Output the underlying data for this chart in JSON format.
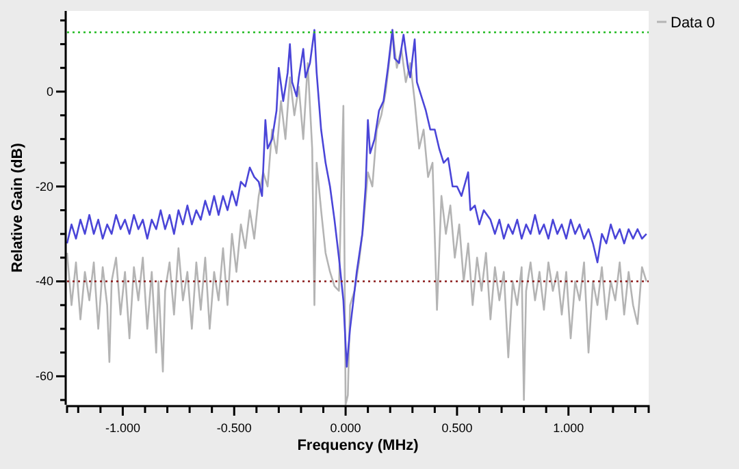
{
  "chart_data": {
    "type": "line",
    "xlabel": "Frequency (MHz)",
    "ylabel": "Relative Gain (dB)",
    "xlim": [
      -1.25,
      1.36
    ],
    "ylim": [
      -66,
      17
    ],
    "xticks": [
      {
        "value": -1.2,
        "label": null
      },
      {
        "value": -1.1,
        "label": null
      },
      {
        "value": -1,
        "label": "-1.000"
      },
      {
        "value": -0.9,
        "label": null
      },
      {
        "value": -0.8,
        "label": null
      },
      {
        "value": -0.7,
        "label": null
      },
      {
        "value": -0.6,
        "label": null
      },
      {
        "value": -0.5,
        "label": "-0.500"
      },
      {
        "value": -0.4,
        "label": null
      },
      {
        "value": -0.3,
        "label": null
      },
      {
        "value": -0.2,
        "label": null
      },
      {
        "value": -0.1,
        "label": null
      },
      {
        "value": 0,
        "label": "0.000"
      },
      {
        "value": 0.1,
        "label": null
      },
      {
        "value": 0.2,
        "label": null
      },
      {
        "value": 0.3,
        "label": null
      },
      {
        "value": 0.4,
        "label": null
      },
      {
        "value": 0.5,
        "label": "0.500"
      },
      {
        "value": 0.6,
        "label": null
      },
      {
        "value": 0.7,
        "label": null
      },
      {
        "value": 0.8,
        "label": null
      },
      {
        "value": 0.9,
        "label": null
      },
      {
        "value": 1,
        "label": "1.000"
      },
      {
        "value": 1.1,
        "label": null
      },
      {
        "value": 1.2,
        "label": null
      },
      {
        "value": 1.3,
        "label": null
      }
    ],
    "yticks": [
      {
        "value": -65,
        "label": null
      },
      -60,
      {
        "value": -55,
        "label": null
      },
      {
        "value": -50,
        "label": null
      },
      {
        "value": -45,
        "label": null
      },
      -40,
      {
        "value": -35,
        "label": null
      },
      {
        "value": -30,
        "label": null
      },
      {
        "value": -25,
        "label": null
      },
      -20,
      {
        "value": -15,
        "label": null
      },
      {
        "value": -10,
        "label": null
      },
      {
        "value": -5,
        "label": null
      },
      0,
      {
        "value": 5,
        "label": null
      },
      {
        "value": 10,
        "label": null
      },
      {
        "value": 15,
        "label": null
      }
    ],
    "grid": false,
    "legend": "top right",
    "marker": "none",
    "line_style": "solid",
    "ref_lines": [
      {
        "axis": "y",
        "value": 12.5,
        "color": "#22bb22",
        "line_style": "dotted"
      },
      {
        "axis": "y",
        "value": -40,
        "color": "#8b1a1a",
        "line_style": "dotted"
      }
    ],
    "series": [
      {
        "name": "Data 0",
        "color": "#b4b4b4",
        "x": [
          -1.25,
          -1.23,
          -1.21,
          -1.19,
          -1.17,
          -1.15,
          -1.13,
          -1.11,
          -1.09,
          -1.07,
          -1.06,
          -1.05,
          -1.03,
          -1.01,
          -0.99,
          -0.97,
          -0.95,
          -0.93,
          -0.91,
          -0.89,
          -0.87,
          -0.85,
          -0.84,
          -0.82,
          -0.81,
          -0.79,
          -0.77,
          -0.75,
          -0.73,
          -0.71,
          -0.69,
          -0.67,
          -0.65,
          -0.63,
          -0.61,
          -0.59,
          -0.57,
          -0.55,
          -0.53,
          -0.51,
          -0.49,
          -0.47,
          -0.45,
          -0.43,
          -0.41,
          -0.39,
          -0.37,
          -0.35,
          -0.33,
          -0.31,
          -0.29,
          -0.27,
          -0.25,
          -0.23,
          -0.21,
          -0.19,
          -0.17,
          -0.15,
          -0.14,
          -0.13,
          -0.11,
          -0.09,
          -0.07,
          -0.05,
          -0.03,
          -0.01,
          0,
          0.01,
          0.02,
          0.04,
          0.06,
          0.08,
          0.1,
          0.12,
          0.14,
          0.16,
          0.18,
          0.2,
          0.21,
          0.23,
          0.25,
          0.27,
          0.29,
          0.31,
          0.33,
          0.35,
          0.37,
          0.39,
          0.41,
          0.43,
          0.45,
          0.47,
          0.49,
          0.51,
          0.53,
          0.55,
          0.57,
          0.59,
          0.61,
          0.63,
          0.65,
          0.67,
          0.69,
          0.71,
          0.73,
          0.75,
          0.77,
          0.79,
          0.8,
          0.81,
          0.83,
          0.85,
          0.87,
          0.89,
          0.91,
          0.93,
          0.95,
          0.97,
          0.99,
          1.01,
          1.03,
          1.05,
          1.07,
          1.09,
          1.11,
          1.13,
          1.15,
          1.17,
          1.19,
          1.21,
          1.23,
          1.25,
          1.27,
          1.29,
          1.31,
          1.33,
          1.35
        ],
        "values": [
          -34,
          -45,
          -36,
          -48,
          -38,
          -44,
          -36,
          -50,
          -37,
          -45,
          -57,
          -40,
          -35,
          -47,
          -38,
          -52,
          -37,
          -44,
          -35,
          -50,
          -38,
          -55,
          -40,
          -59,
          -42,
          -36,
          -47,
          -33,
          -44,
          -38,
          -50,
          -36,
          -46,
          -35,
          -50,
          -38,
          -44,
          -33,
          -45,
          -30,
          -38,
          -28,
          -33,
          -25,
          -31,
          -22,
          -17,
          -20,
          -8,
          -13,
          -2,
          -10,
          3,
          -5,
          1,
          -10,
          6,
          -12,
          -45,
          -15,
          -25,
          -34,
          -38,
          -41,
          -42,
          -3,
          -66,
          -64,
          -45,
          -42,
          -36,
          -28,
          -17,
          -20,
          -8,
          -5,
          0,
          8,
          13,
          5,
          9,
          2,
          6,
          -2,
          -12,
          -8,
          -18,
          -15,
          -46,
          -22,
          -30,
          -24,
          -35,
          -28,
          -40,
          -32,
          -45,
          -35,
          -42,
          -34,
          -48,
          -37,
          -44,
          -38,
          -56,
          -40,
          -45,
          -37,
          -65,
          -42,
          -36,
          -44,
          -38,
          -46,
          -36,
          -42,
          -38,
          -47,
          -38,
          -52,
          -40,
          -44,
          -36,
          -55,
          -40,
          -45,
          -37,
          -48,
          -40,
          -44,
          -36,
          -47,
          -38,
          -45,
          -49,
          -37,
          -40
        ]
      },
      {
        "color": "#4a45d8",
        "x": [
          -1.25,
          -1.23,
          -1.21,
          -1.19,
          -1.17,
          -1.15,
          -1.13,
          -1.11,
          -1.09,
          -1.07,
          -1.05,
          -1.03,
          -1.01,
          -0.99,
          -0.97,
          -0.95,
          -0.93,
          -0.91,
          -0.89,
          -0.87,
          -0.85,
          -0.83,
          -0.81,
          -0.79,
          -0.77,
          -0.75,
          -0.73,
          -0.71,
          -0.69,
          -0.67,
          -0.65,
          -0.63,
          -0.61,
          -0.59,
          -0.57,
          -0.55,
          -0.53,
          -0.51,
          -0.49,
          -0.47,
          -0.45,
          -0.43,
          -0.41,
          -0.39,
          -0.375,
          -0.36,
          -0.35,
          -0.33,
          -0.31,
          -0.3,
          -0.28,
          -0.26,
          -0.25,
          -0.24,
          -0.22,
          -0.21,
          -0.19,
          -0.18,
          -0.16,
          -0.14,
          -0.13,
          -0.11,
          -0.09,
          -0.07,
          -0.05,
          -0.03,
          -0.01,
          0.005,
          0.02,
          0.035,
          0.05,
          0.075,
          0.09,
          0.1,
          0.11,
          0.13,
          0.15,
          0.17,
          0.19,
          0.21,
          0.22,
          0.24,
          0.26,
          0.28,
          0.29,
          0.31,
          0.32,
          0.34,
          0.36,
          0.38,
          0.4,
          0.42,
          0.44,
          0.46,
          0.48,
          0.5,
          0.52,
          0.55,
          0.56,
          0.58,
          0.6,
          0.62,
          0.65,
          0.67,
          0.69,
          0.71,
          0.73,
          0.75,
          0.77,
          0.79,
          0.81,
          0.83,
          0.85,
          0.87,
          0.89,
          0.91,
          0.93,
          0.95,
          0.97,
          0.99,
          1.01,
          1.03,
          1.05,
          1.07,
          1.09,
          1.11,
          1.13,
          1.15,
          1.17,
          1.19,
          1.21,
          1.23,
          1.25,
          1.27,
          1.29,
          1.31,
          1.33,
          1.35
        ],
        "values": [
          -32,
          -28,
          -31,
          -27,
          -30,
          -26,
          -30,
          -27,
          -31,
          -28,
          -30,
          -26,
          -29,
          -27,
          -30,
          -26,
          -29,
          -27,
          -31,
          -27,
          -29,
          -25,
          -29,
          -26,
          -30,
          -25,
          -28,
          -24,
          -28,
          -25,
          -27,
          -23,
          -26,
          -22,
          -26,
          -22,
          -25,
          -21,
          -24,
          -19,
          -20,
          -16,
          -18,
          -19,
          -22,
          -6,
          -12,
          -10,
          -4,
          5,
          -2,
          4,
          10,
          2,
          -1,
          3,
          9,
          3,
          6,
          13,
          4,
          -8,
          -15,
          -20,
          -27,
          -35,
          -44,
          -58,
          -50,
          -44,
          -38,
          -30,
          -20,
          -6,
          -13,
          -10,
          -4,
          -2,
          5,
          13,
          7,
          6,
          12,
          5,
          3,
          11,
          2,
          -1,
          -4,
          -8,
          -8,
          -12,
          -15,
          -14,
          -20,
          -20,
          -22,
          -17,
          -25,
          -24,
          -28,
          -25,
          -27,
          -30,
          -27,
          -31,
          -28,
          -30,
          -27,
          -31,
          -28,
          -30,
          -26,
          -30,
          -28,
          -31,
          -27,
          -30,
          -28,
          -31,
          -27,
          -30,
          -28,
          -31,
          -29,
          -32,
          -36,
          -30,
          -32,
          -28,
          -31,
          -29,
          -32,
          -29,
          -31,
          -29,
          -31,
          -30
        ]
      }
    ]
  }
}
